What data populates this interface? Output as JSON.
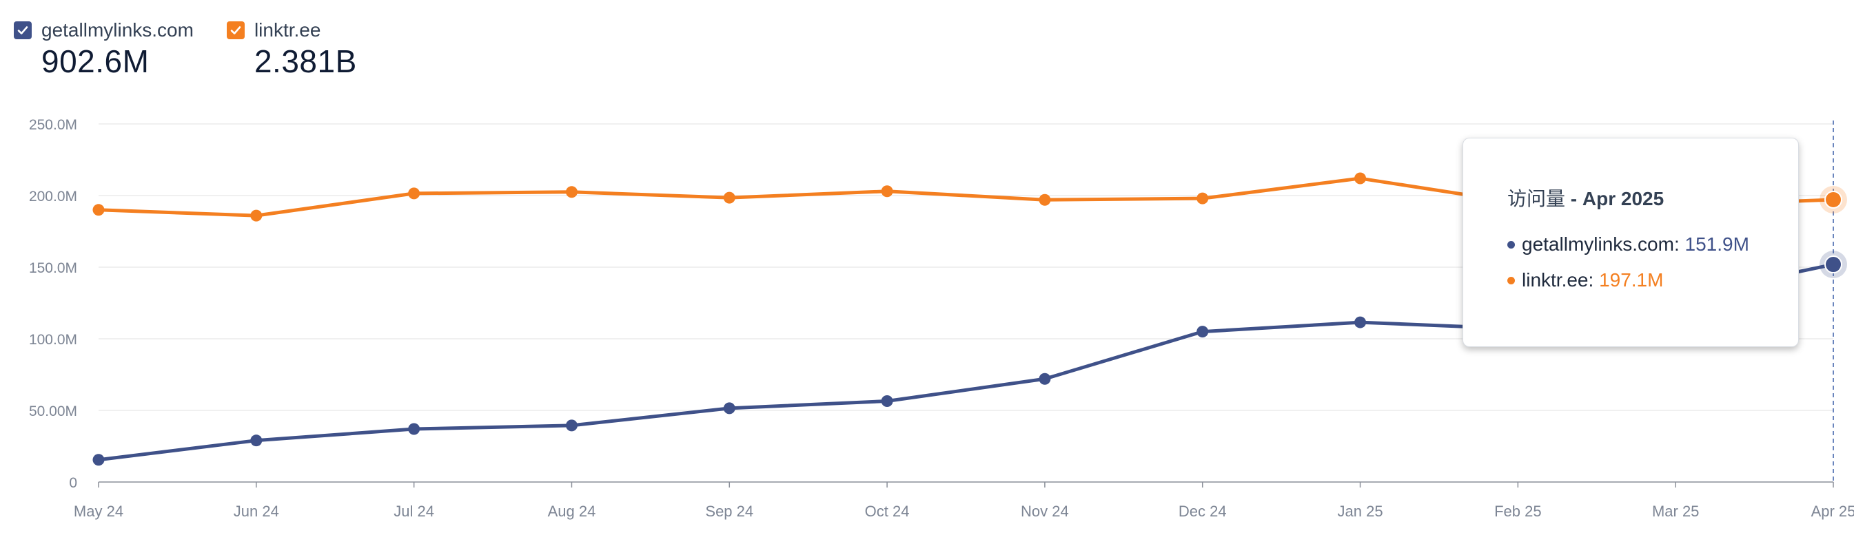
{
  "legend": [
    {
      "name": "getallmylinks.com",
      "total": "902.6M",
      "color": "#3f5189"
    },
    {
      "name": "linktr.ee",
      "total": "2.381B",
      "color": "#f47f20"
    }
  ],
  "tooltip": {
    "metric": "访问量",
    "separator": " - ",
    "period": "Apr 2025",
    "rows": [
      {
        "name": "getallmylinks.com",
        "value": "151.9M",
        "color": "#3f5189"
      },
      {
        "name": "linktr.ee",
        "value": "197.1M",
        "color": "#f47f20"
      }
    ]
  },
  "chart_data": {
    "type": "line",
    "x": [
      "May 24",
      "Jun 24",
      "Jul 24",
      "Aug 24",
      "Sep 24",
      "Oct 24",
      "Nov 24",
      "Dec 24",
      "Jan 25",
      "Feb 25",
      "Mar 25",
      "Apr 25"
    ],
    "y_ticks": [
      "0",
      "50.00M",
      "100.0M",
      "150.0M",
      "200.0M",
      "250.0M"
    ],
    "ylim": [
      0,
      250
    ],
    "y_unit": "M",
    "grid": true,
    "series": [
      {
        "name": "getallmylinks.com",
        "color": "#3f5189",
        "values": [
          15.5,
          29.0,
          37.0,
          39.5,
          51.5,
          56.5,
          72.0,
          105.0,
          111.5,
          107.0,
          129.0,
          151.9
        ]
      },
      {
        "name": "linktr.ee",
        "color": "#f47f20",
        "values": [
          190.0,
          186.0,
          201.5,
          202.5,
          198.5,
          203.0,
          197.0,
          198.0,
          212.0,
          195.0,
          193.0,
          197.1
        ]
      }
    ],
    "highlight_index": 11
  }
}
